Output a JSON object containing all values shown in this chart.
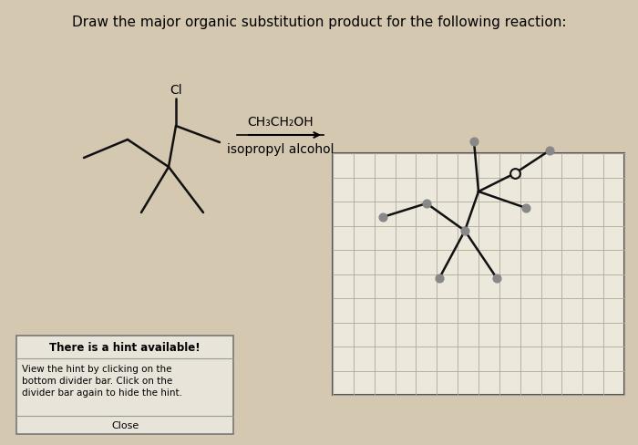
{
  "bg_color": "#d4c8b0",
  "title": "Draw the major organic substitution product for the following reaction:",
  "title_fontsize": 11,
  "reagent_line1": "CH₃CH₂OH",
  "reagent_line2": "isopropyl alcohol",
  "grid_facecolor": "#ede8dc",
  "grid_linecolor": "#b0a898",
  "grid_edgecolor": "#555555",
  "grid_nx": 14,
  "grid_ny": 10,
  "hint_title": "There is a hint available!",
  "hint_body": "View the hint by clicking on the\nbottom divider bar. Click on the\ndivider bar again to hide the hint.",
  "hint_close": "Close",
  "mol_linecolor": "#111111",
  "mol_linewidth": 1.8,
  "dot_color": "#888888",
  "dot_size": 40
}
